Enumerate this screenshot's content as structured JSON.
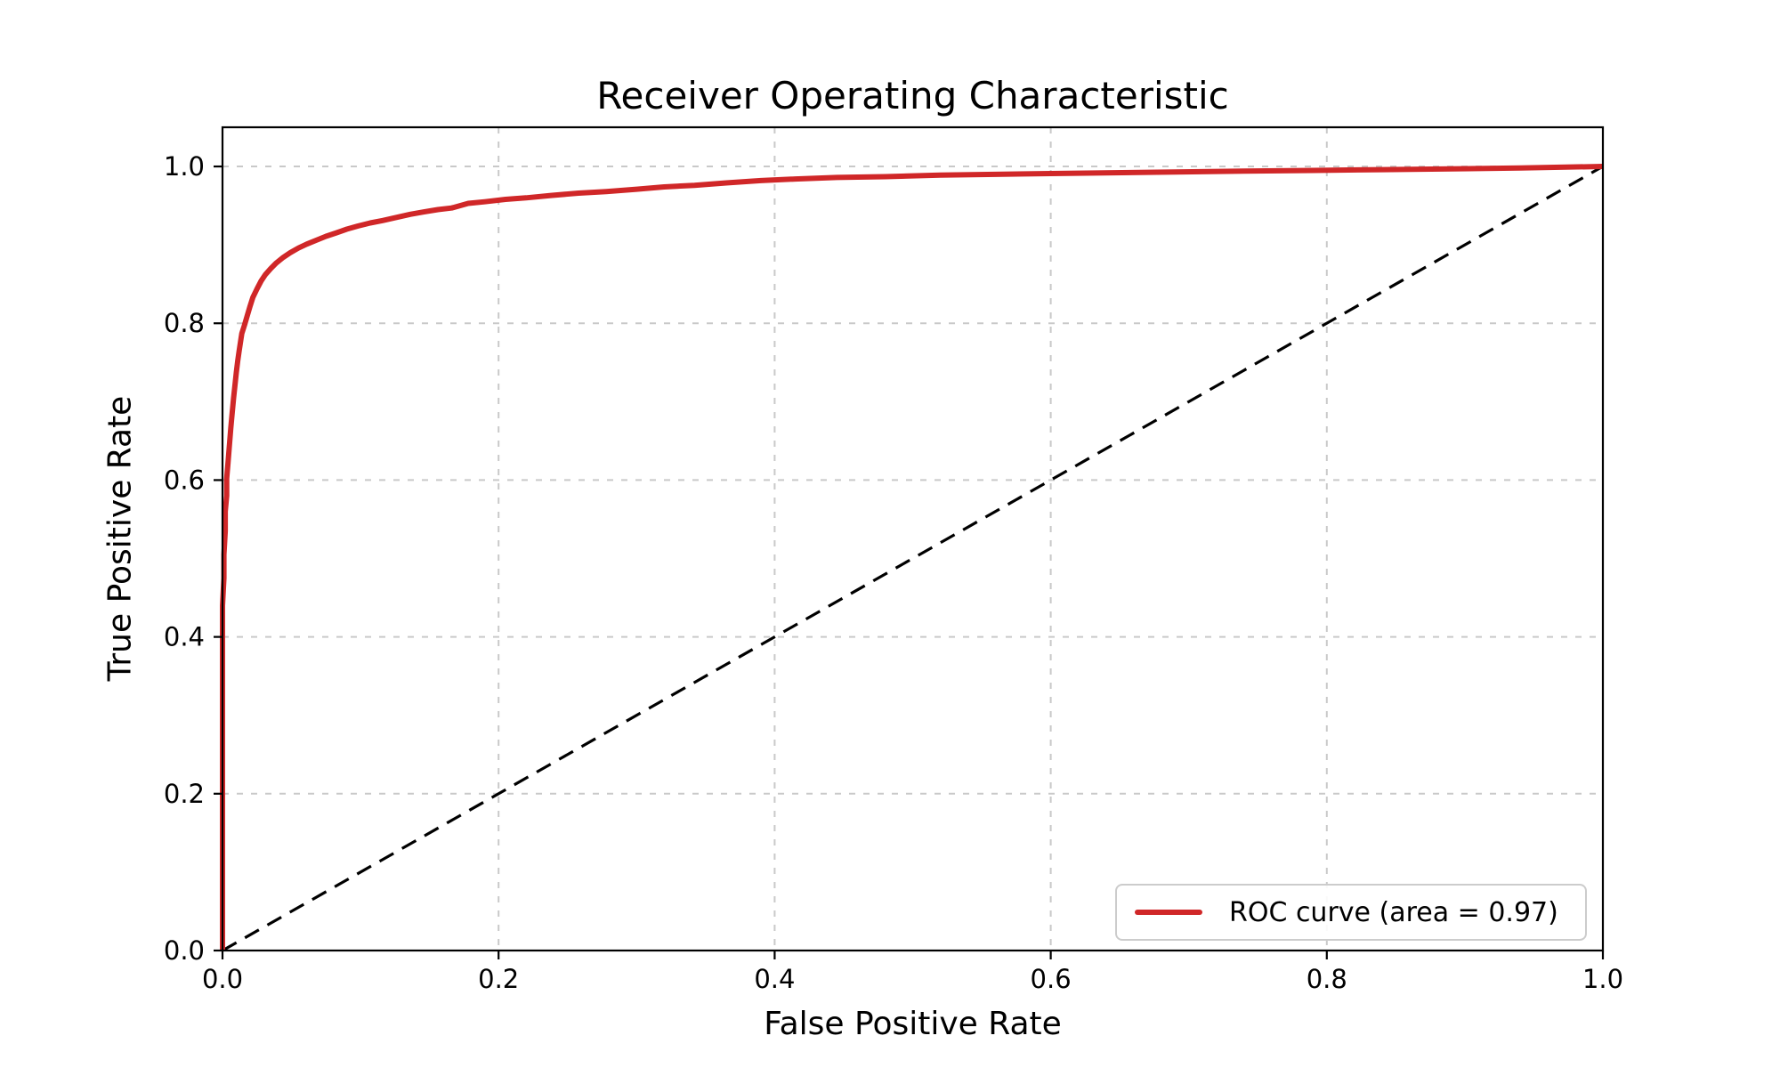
{
  "figure": {
    "background": "#ffffff"
  },
  "chart_data": {
    "type": "line",
    "title": "Receiver Operating Characteristic",
    "xlabel": "False Positive Rate",
    "ylabel": "True Positive Rate",
    "xlim": [
      0.0,
      1.0
    ],
    "ylim": [
      0.0,
      1.05
    ],
    "xticks": [
      0.0,
      0.2,
      0.4,
      0.6,
      0.8,
      1.0
    ],
    "yticks": [
      0.0,
      0.2,
      0.4,
      0.6,
      0.8,
      1.0
    ],
    "xtick_labels": [
      "0.0",
      "0.2",
      "0.4",
      "0.6",
      "0.8",
      "1.0"
    ],
    "ytick_labels": [
      "0.0",
      "0.2",
      "0.4",
      "0.6",
      "0.8",
      "1.0"
    ],
    "grid": true,
    "grid_style": "dashed",
    "grid_color": "#c9c9c9",
    "auc": 0.97,
    "legend": {
      "position": "lower right",
      "entries": [
        {
          "label": "ROC curve (area = 0.97)",
          "color": "#d02728",
          "style": "solid"
        }
      ]
    },
    "series": [
      {
        "name": "ROC curve (area = 0.97)",
        "color": "#d02728",
        "style": "solid",
        "width": 6,
        "points": [
          [
            0.0,
            0.0
          ],
          [
            0.0,
            0.16
          ],
          [
            0.0,
            0.3
          ],
          [
            0.0,
            0.44
          ],
          [
            0.001,
            0.475
          ],
          [
            0.001,
            0.505
          ],
          [
            0.002,
            0.535
          ],
          [
            0.002,
            0.56
          ],
          [
            0.003,
            0.58
          ],
          [
            0.003,
            0.602
          ],
          [
            0.004,
            0.622
          ],
          [
            0.005,
            0.645
          ],
          [
            0.006,
            0.666
          ],
          [
            0.007,
            0.686
          ],
          [
            0.008,
            0.704
          ],
          [
            0.009,
            0.721
          ],
          [
            0.01,
            0.737
          ],
          [
            0.011,
            0.752
          ],
          [
            0.012,
            0.764
          ],
          [
            0.013,
            0.776
          ],
          [
            0.014,
            0.787
          ],
          [
            0.016,
            0.798
          ],
          [
            0.018,
            0.81
          ],
          [
            0.02,
            0.822
          ],
          [
            0.022,
            0.833
          ],
          [
            0.025,
            0.844
          ],
          [
            0.028,
            0.854
          ],
          [
            0.031,
            0.862
          ],
          [
            0.035,
            0.87
          ],
          [
            0.039,
            0.877
          ],
          [
            0.044,
            0.884
          ],
          [
            0.049,
            0.89
          ],
          [
            0.055,
            0.896
          ],
          [
            0.061,
            0.901
          ],
          [
            0.068,
            0.906
          ],
          [
            0.075,
            0.911
          ],
          [
            0.082,
            0.915
          ],
          [
            0.09,
            0.92
          ],
          [
            0.098,
            0.924
          ],
          [
            0.107,
            0.928
          ],
          [
            0.116,
            0.931
          ],
          [
            0.126,
            0.935
          ],
          [
            0.136,
            0.939
          ],
          [
            0.146,
            0.942
          ],
          [
            0.156,
            0.945
          ],
          [
            0.166,
            0.947
          ],
          [
            0.172,
            0.95
          ],
          [
            0.178,
            0.953
          ],
          [
            0.19,
            0.955
          ],
          [
            0.205,
            0.958
          ],
          [
            0.22,
            0.96
          ],
          [
            0.238,
            0.963
          ],
          [
            0.258,
            0.966
          ],
          [
            0.278,
            0.968
          ],
          [
            0.3,
            0.971
          ],
          [
            0.32,
            0.974
          ],
          [
            0.342,
            0.976
          ],
          [
            0.365,
            0.979
          ],
          [
            0.39,
            0.982
          ],
          [
            0.415,
            0.984
          ],
          [
            0.445,
            0.986
          ],
          [
            0.48,
            0.987
          ],
          [
            0.52,
            0.989
          ],
          [
            0.56,
            0.99
          ],
          [
            0.6,
            0.991
          ],
          [
            0.645,
            0.992
          ],
          [
            0.69,
            0.993
          ],
          [
            0.74,
            0.994
          ],
          [
            0.79,
            0.995
          ],
          [
            0.84,
            0.996
          ],
          [
            0.89,
            0.997
          ],
          [
            0.94,
            0.998
          ],
          [
            1.0,
            1.0
          ]
        ]
      },
      {
        "name": "chance-diagonal",
        "color": "#000000",
        "style": "dashed",
        "width": 3.2,
        "points": [
          [
            0.0,
            0.0
          ],
          [
            1.0,
            1.0
          ]
        ]
      }
    ]
  }
}
